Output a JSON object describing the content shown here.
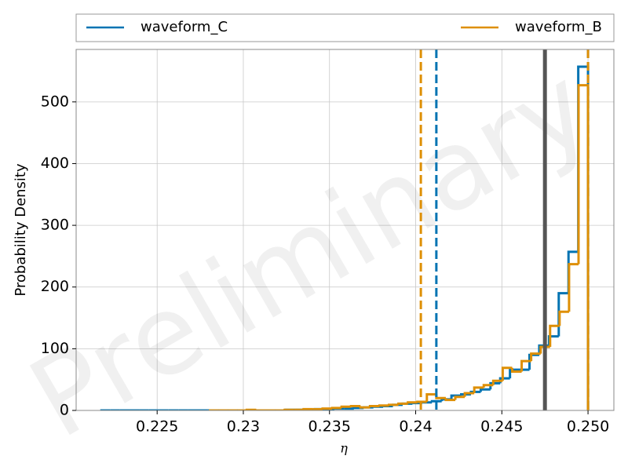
{
  "chart_data": {
    "type": "histogram",
    "xlabel": "η",
    "ylabel": "Probability Density",
    "watermark": "Preliminary",
    "xlim": [
      0.2203,
      0.2515
    ],
    "ylim": [
      0,
      585
    ],
    "xticks": [
      0.225,
      0.23,
      0.235,
      0.24,
      0.245,
      {
        "value": 0.25,
        "label": "0.250"
      }
    ],
    "yticks": [
      0,
      100,
      200,
      300,
      400,
      500
    ],
    "grid": true,
    "legend": "upper center outside",
    "series": [
      {
        "name": "waveform_C",
        "color": "#0173b2",
        "bin_start": 0.2217,
        "bin_width": 0.000566,
        "bins": [
          0.2217,
          0.222266,
          0.222832,
          0.223398,
          0.223964,
          0.22453,
          0.225096,
          0.225662,
          0.226228,
          0.226794,
          0.22736,
          0.227926,
          0.228492,
          0.229058,
          0.229624,
          0.23019,
          0.230756,
          0.231322,
          0.231888,
          0.232454,
          0.23302,
          0.233586,
          0.234152,
          0.234718,
          0.235284,
          0.23585,
          0.236416,
          0.236982,
          0.237548,
          0.238114,
          0.23868,
          0.239246,
          0.239812,
          0.240378,
          0.240944,
          0.24151,
          0.242076,
          0.242642,
          0.243208,
          0.243774,
          0.24434,
          0.244906,
          0.245472,
          0.246038,
          0.246604,
          0.24717,
          0.247736,
          0.248302,
          0.248868,
          0.249434,
          0.25
        ],
        "values": [
          0,
          0,
          0,
          0,
          0,
          0,
          0,
          0,
          0,
          0,
          0,
          0,
          0,
          0,
          0,
          0,
          0,
          0,
          0,
          1,
          1,
          1,
          2,
          2,
          3,
          3,
          4,
          5,
          6,
          7,
          9,
          11,
          12,
          13,
          15,
          18,
          24,
          26,
          30,
          34,
          44,
          52,
          66,
          66,
          90,
          105,
          120,
          190,
          257,
          557
        ]
      },
      {
        "name": "waveform_B",
        "color": "#de8f05",
        "bins": [
          0.228,
          0.22855,
          0.2291,
          0.22965,
          0.2302,
          0.23075,
          0.2313,
          0.23185,
          0.2324,
          0.23295,
          0.2335,
          0.23405,
          0.2346,
          0.23515,
          0.2357,
          0.23625,
          0.2368,
          0.23735,
          0.2379,
          0.23845,
          0.239,
          0.23955,
          0.2401,
          0.24065,
          0.2412,
          0.24175,
          0.2423,
          0.24285,
          0.2434,
          0.24395,
          0.2445,
          0.24505,
          0.2456,
          0.24615,
          0.2467,
          0.24725,
          0.2478,
          0.24835,
          0.2489,
          0.24945,
          0.25
        ],
        "values": [
          0,
          0,
          0,
          0,
          1,
          0,
          0,
          0,
          1,
          1,
          2,
          2,
          3,
          4,
          6,
          7,
          5,
          7,
          8,
          9,
          11,
          13,
          14,
          26,
          20,
          17,
          22,
          28,
          37,
          41,
          48,
          69,
          63,
          80,
          92,
          103,
          137,
          160,
          237,
          527
        ]
      }
    ],
    "vlines": [
      {
        "x": 0.2403,
        "color": "#de8f05",
        "style": "dashed"
      },
      {
        "x": 0.2412,
        "color": "#0173b2",
        "style": "dashed"
      },
      {
        "x": 0.25,
        "color": "#0173b2",
        "style": "dashed"
      },
      {
        "x": 0.25,
        "color": "#de8f05",
        "style": "dashed"
      },
      {
        "x": 0.2475,
        "color": "#555555",
        "style": "solid"
      }
    ]
  }
}
